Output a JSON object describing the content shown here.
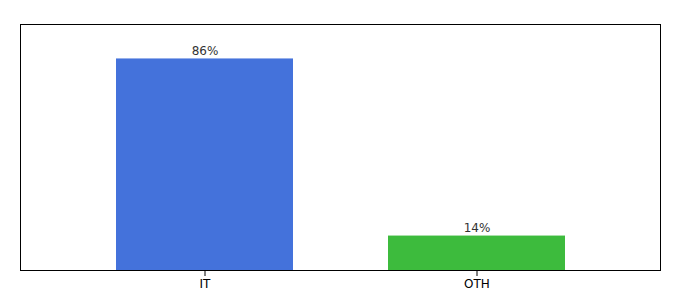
{
  "chart_data": {
    "type": "bar",
    "categories": [
      "IT",
      "OTH"
    ],
    "values": [
      86,
      14
    ],
    "value_labels": [
      "86%",
      "14%"
    ],
    "colors": [
      "#4472db",
      "#3dbb3d"
    ],
    "ylim": [
      0,
      100
    ],
    "data_labels": true,
    "tick_labels": "x"
  }
}
